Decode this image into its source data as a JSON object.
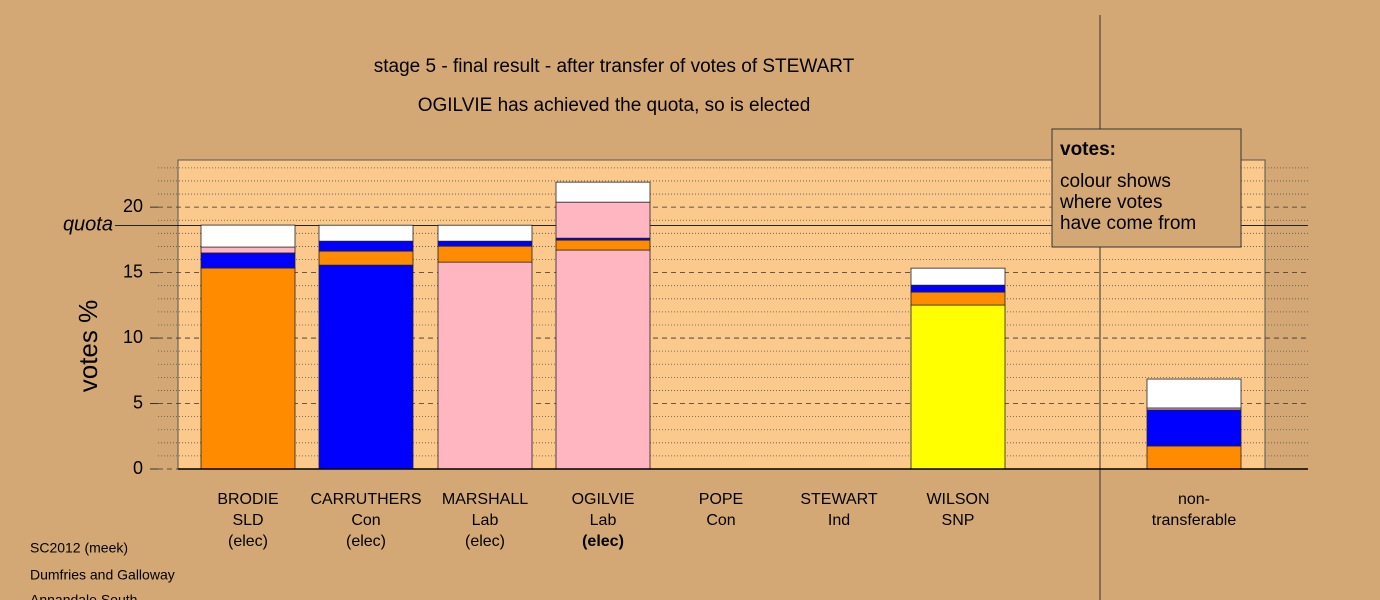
{
  "chart_data": {
    "type": "stacked_bar",
    "title": "stage 5 - final result - after transfer of votes of STEWART",
    "subtitle": "OGILVIE has achieved the quota, so is elected",
    "ylabel": "votes %",
    "categories": [
      [
        "BRODIE",
        "SLD",
        "(elec)"
      ],
      [
        "CARRUTHERS",
        "Con",
        "(elec)"
      ],
      [
        "MARSHALL",
        "Lab",
        "(elec)"
      ],
      [
        "OGILVIE",
        "Lab",
        "(elec)"
      ],
      [
        "POPE",
        "Con"
      ],
      [
        "STEWART",
        "Ind"
      ],
      [
        "WILSON",
        "SNP"
      ],
      [
        "non-",
        "transferable"
      ]
    ],
    "highlight": 3,
    "series": [
      {
        "colors": [
          "#ff8c00",
          "#0000ff",
          "#ffb6c1",
          "#ffb6c1",
          "#0000ff",
          "#ffffff",
          "#ffff00",
          "#ffffff"
        ],
        "values": [
          15.35,
          15.57,
          15.8,
          16.72,
          0,
          0,
          12.52,
          0
        ]
      },
      {
        "color": "#ff8c00",
        "values": [
          0,
          1.07,
          1.22,
          0.76,
          0,
          0,
          0.99,
          1.76
        ]
      },
      {
        "color": "#0000ff",
        "values": [
          1.15,
          0.76,
          0.38,
          0.15,
          0,
          0,
          0.53,
          2.75
        ]
      },
      {
        "color": "#ffb6c1",
        "values": [
          0.45,
          0,
          0,
          2.75,
          0,
          0,
          0,
          0.15
        ]
      },
      {
        "color": "#ffffff",
        "values": [
          1.68,
          1.22,
          1.22,
          1.53,
          0,
          0,
          1.3,
          2.21
        ]
      }
    ],
    "ylim": [
      0,
      23.6
    ],
    "yticks": [
      0,
      5,
      10,
      15,
      20
    ],
    "minor_yticks": [
      1,
      2,
      3,
      4,
      6,
      7,
      8,
      9,
      11,
      12,
      13,
      14,
      16,
      17,
      18,
      19,
      21,
      22,
      23
    ],
    "quota": {
      "label": "quota",
      "value": 18.6
    },
    "legend": {
      "title": "votes:",
      "lines": [
        "colour shows",
        "where votes",
        "have come from"
      ]
    },
    "footer": [
      "SC2012 (meek)",
      "Dumfries and Galloway",
      "Annandale South"
    ]
  }
}
